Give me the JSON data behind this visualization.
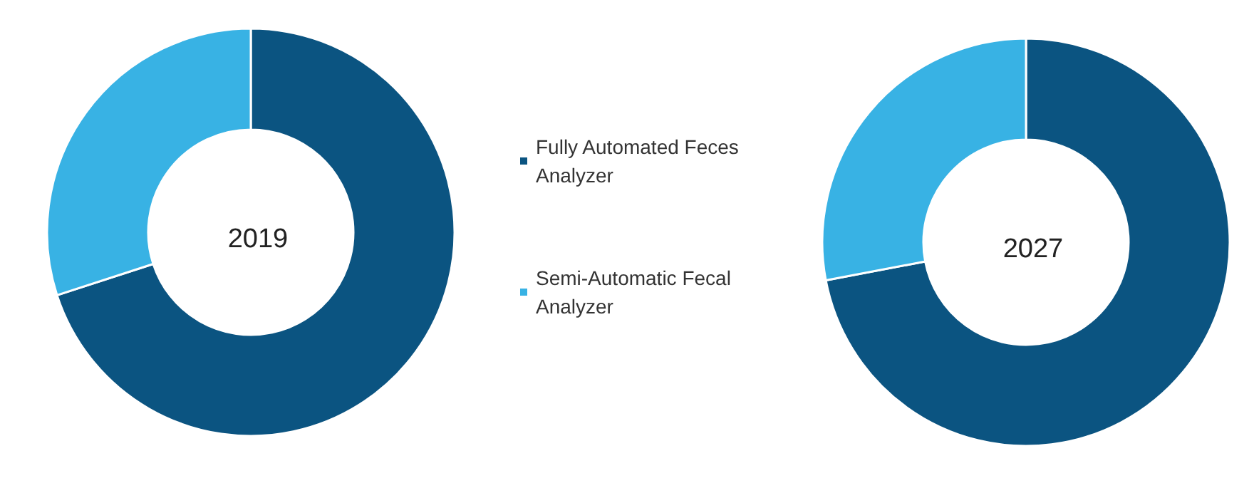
{
  "chart_data": [
    {
      "type": "donut",
      "title": "2019",
      "categories": [
        "Fully Automated Feces Analyzer",
        "Semi-Automatic Fecal Analyzer"
      ],
      "values": [
        70,
        30
      ],
      "colors": [
        "#0b5481",
        "#38b2e4"
      ],
      "legend": "right"
    },
    {
      "type": "donut",
      "title": "2027",
      "categories": [
        null,
        null
      ],
      "values": [
        72,
        28
      ],
      "colors": [
        "#0b5481",
        "#38b2e4"
      ]
    }
  ]
}
